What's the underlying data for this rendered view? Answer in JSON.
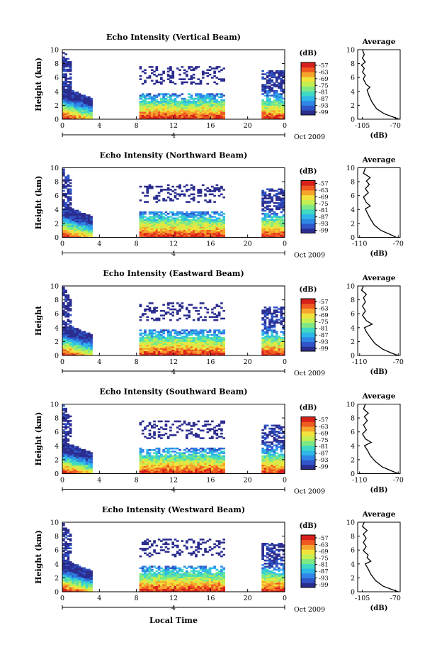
{
  "chart_data": [
    {
      "type": "heatmap",
      "title": "Echo Intensity (Vertical Beam)",
      "ylabel": "Height (km)",
      "y_ticks": [
        "0",
        "2",
        "4",
        "6",
        "8",
        "10"
      ],
      "x_ticks": [
        "0",
        "4",
        "8",
        "12",
        "16",
        "20",
        "0"
      ],
      "date_label": "4",
      "month_label": "Oct 2009",
      "cbar_unit": "(dB)",
      "cbar_ticks": [
        "-57",
        "-63",
        "-69",
        "-75",
        "-81",
        "-87",
        "-93",
        "-99"
      ],
      "avg_title": "Average",
      "avg_xlabel": "(dB)",
      "avg_xticks": [
        "-105",
        "-70"
      ],
      "avg_xlim": [
        -110,
        -65
      ],
      "avg_profile": [
        [
          -66,
          0
        ],
        [
          -72,
          0.3
        ],
        [
          -82,
          0.8
        ],
        [
          -90,
          1.5
        ],
        [
          -95,
          2.5
        ],
        [
          -98,
          3.4
        ],
        [
          -100,
          4.2
        ],
        [
          -97,
          4.6
        ],
        [
          -101,
          5.0
        ],
        [
          -104,
          5.8
        ],
        [
          -102,
          6.3
        ],
        [
          -105,
          6.8
        ],
        [
          -103,
          7.3
        ],
        [
          -106,
          7.8
        ],
        [
          -102,
          8.2
        ],
        [
          -105,
          8.8
        ],
        [
          -103,
          9.3
        ],
        [
          -105,
          10
        ]
      ]
    },
    {
      "type": "heatmap",
      "title": "Echo Intensity (Northward Beam)",
      "ylabel": "Height (km)",
      "y_ticks": [
        "0",
        "2",
        "4",
        "6",
        "8",
        "10"
      ],
      "x_ticks": [
        "0",
        "4",
        "8",
        "12",
        "16",
        "20",
        "0"
      ],
      "date_label": "4",
      "month_label": "Oct 2009",
      "cbar_unit": "(dB)",
      "cbar_ticks": [
        "-57",
        "-63",
        "-69",
        "-75",
        "-81",
        "-87",
        "-93",
        "-99"
      ],
      "avg_title": "Average",
      "avg_xlabel": "(dB)",
      "avg_xticks": [
        "-110",
        "-70"
      ],
      "avg_xlim": [
        -112,
        -68
      ],
      "avg_profile": [
        [
          -72,
          0
        ],
        [
          -78,
          0.4
        ],
        [
          -88,
          1.0
        ],
        [
          -95,
          1.8
        ],
        [
          -99,
          2.7
        ],
        [
          -102,
          3.5
        ],
        [
          -104,
          4.1
        ],
        [
          -99,
          4.5
        ],
        [
          -103,
          5.0
        ],
        [
          -106,
          5.8
        ],
        [
          -101,
          6.4
        ],
        [
          -104,
          7.0
        ],
        [
          -100,
          7.6
        ],
        [
          -103,
          8.1
        ],
        [
          -99,
          8.6
        ],
        [
          -106,
          9.2
        ],
        [
          -104,
          10
        ]
      ]
    },
    {
      "type": "heatmap",
      "title": "Echo Intensity (Eastward Beam)",
      "ylabel": "Height",
      "y_ticks": [
        "0",
        "2",
        "4",
        "6",
        "8",
        "10"
      ],
      "x_ticks": [
        "0",
        "4",
        "8",
        "12",
        "16",
        "20",
        "0"
      ],
      "date_label": "4",
      "month_label": "Oct 2009",
      "cbar_unit": "(dB)",
      "cbar_ticks": [
        "-57",
        "-63",
        "-69",
        "-75",
        "-81",
        "-87",
        "-93",
        "-99"
      ],
      "avg_title": "Average",
      "avg_xlabel": "(dB)",
      "avg_xticks": [
        "-110",
        "-70"
      ],
      "avg_xlim": [
        -112,
        -68
      ],
      "avg_profile": [
        [
          -70,
          0
        ],
        [
          -76,
          0.3
        ],
        [
          -86,
          0.9
        ],
        [
          -94,
          1.7
        ],
        [
          -99,
          2.6
        ],
        [
          -103,
          3.4
        ],
        [
          -105,
          4.0
        ],
        [
          -97,
          4.5
        ],
        [
          -103,
          5.0
        ],
        [
          -107,
          5.8
        ],
        [
          -104,
          6.4
        ],
        [
          -107,
          7.1
        ],
        [
          -104,
          7.7
        ],
        [
          -106,
          8.3
        ],
        [
          -103,
          8.8
        ],
        [
          -108,
          9.4
        ],
        [
          -106,
          10
        ]
      ]
    },
    {
      "type": "heatmap",
      "title": "Echo Intensity (Southward Beam)",
      "ylabel": "Height (km)",
      "y_ticks": [
        "0",
        "2",
        "4",
        "6",
        "8",
        "10"
      ],
      "x_ticks": [
        "0",
        "4",
        "8",
        "12",
        "16",
        "20",
        "0"
      ],
      "date_label": "4",
      "month_label": "Oct 2009",
      "cbar_unit": "(dB)",
      "cbar_ticks": [
        "-57",
        "-63",
        "-69",
        "-75",
        "-81",
        "-87",
        "-93",
        "-99"
      ],
      "avg_title": "Average",
      "avg_xlabel": "(dB)",
      "avg_xticks": [
        "-110",
        "-70"
      ],
      "avg_xlim": [
        -112,
        -68
      ],
      "avg_profile": [
        [
          -70,
          0
        ],
        [
          -77,
          0.4
        ],
        [
          -87,
          1.0
        ],
        [
          -94,
          1.8
        ],
        [
          -99,
          2.6
        ],
        [
          -102,
          3.4
        ],
        [
          -105,
          4.0
        ],
        [
          -98,
          4.5
        ],
        [
          -104,
          5.0
        ],
        [
          -107,
          5.7
        ],
        [
          -103,
          6.3
        ],
        [
          -106,
          7.0
        ],
        [
          -102,
          7.6
        ],
        [
          -105,
          8.2
        ],
        [
          -101,
          8.7
        ],
        [
          -106,
          9.3
        ],
        [
          -104,
          10
        ]
      ]
    },
    {
      "type": "heatmap",
      "title": "Echo Intensity (Westward Beam)",
      "ylabel": "Height (km)",
      "xlabel": "Local Time",
      "y_ticks": [
        "0",
        "2",
        "4",
        "6",
        "8",
        "10"
      ],
      "x_ticks": [
        "0",
        "4",
        "8",
        "12",
        "16",
        "20",
        "0"
      ],
      "date_label": "4",
      "month_label": "Oct 2009",
      "cbar_unit": "(dB)",
      "cbar_ticks": [
        "-57",
        "-63",
        "-69",
        "-75",
        "-81",
        "-87",
        "-93",
        "-99"
      ],
      "avg_title": "Average",
      "avg_xlabel": "(dB)",
      "avg_xticks": [
        "-105",
        "-70"
      ],
      "avg_xlim": [
        -110,
        -65
      ],
      "avg_profile": [
        [
          -67,
          0
        ],
        [
          -73,
          0.3
        ],
        [
          -83,
          0.8
        ],
        [
          -91,
          1.6
        ],
        [
          -96,
          2.5
        ],
        [
          -99,
          3.3
        ],
        [
          -102,
          4.0
        ],
        [
          -96,
          4.4
        ],
        [
          -100,
          4.9
        ],
        [
          -99,
          5.3
        ],
        [
          -104,
          5.9
        ],
        [
          -101,
          6.5
        ],
        [
          -104,
          7.1
        ],
        [
          -101,
          7.7
        ],
        [
          -104,
          8.3
        ],
        [
          -100,
          8.8
        ],
        [
          -105,
          9.4
        ],
        [
          -103,
          10
        ]
      ]
    }
  ],
  "colormap": [
    "#2b2d8f",
    "#2f55c8",
    "#2f86e6",
    "#2fb7e8",
    "#3fd9c4",
    "#7ee884",
    "#c3ef52",
    "#f1e33c",
    "#f6a52c",
    "#ef5a22",
    "#d8201a"
  ]
}
